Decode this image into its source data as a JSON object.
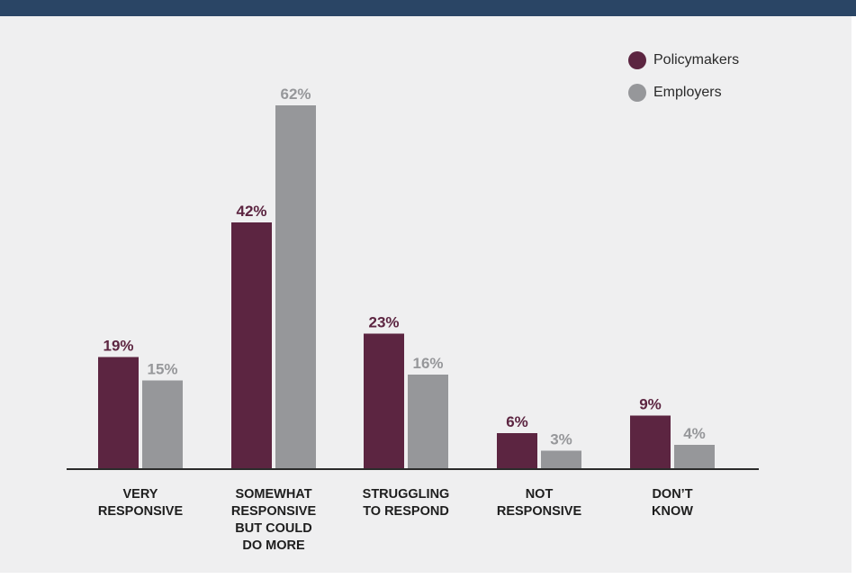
{
  "colors": {
    "header": "#2a4565",
    "panel": "#efeff0",
    "axis": "#2b2b2b"
  },
  "chart_data": {
    "type": "bar",
    "title": "",
    "xlabel": "",
    "ylabel": "",
    "ylim": [
      0,
      70
    ],
    "grid": false,
    "legend_position": "top-right",
    "categories": [
      [
        "VERY",
        "RESPONSIVE"
      ],
      [
        "SOMEWHAT",
        "RESPONSIVE",
        "BUT COULD",
        "DO MORE"
      ],
      [
        "STRUGGLING",
        "TO RESPOND"
      ],
      [
        "NOT",
        "RESPONSIVE"
      ],
      [
        "DON’T",
        "KNOW"
      ]
    ],
    "series": [
      {
        "name": "Policymakers",
        "color": "#5c2541",
        "values": [
          19,
          42,
          23,
          6,
          9
        ],
        "labels": [
          "19%",
          "42%",
          "23%",
          "6%",
          "9%"
        ]
      },
      {
        "name": "Employers",
        "color": "#96979a",
        "values": [
          15,
          62,
          16,
          3,
          4
        ],
        "labels": [
          "15%",
          "62%",
          "16%",
          "3%",
          "4%"
        ]
      }
    ]
  }
}
